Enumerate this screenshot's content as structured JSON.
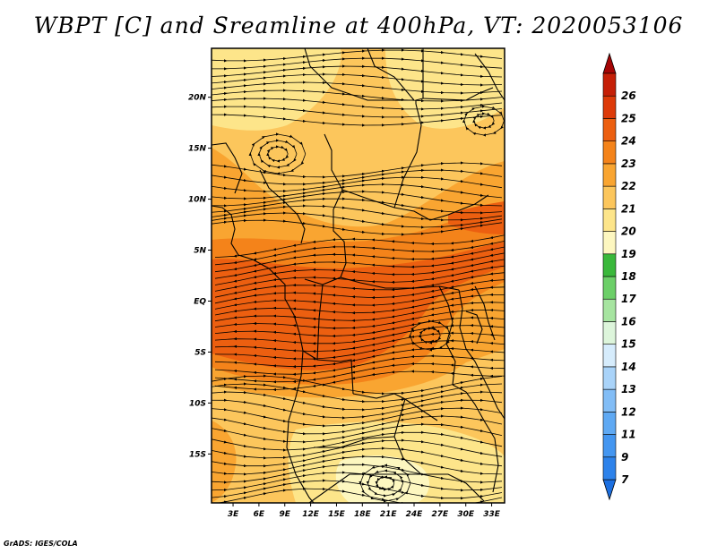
{
  "title": "WBPT [C] and Sreamline at 400hPa, VT: 2020053106",
  "credit": "GrADS: IGES/COLA",
  "map": {
    "lat_labels": [
      {
        "lat": 20,
        "label": "20N"
      },
      {
        "lat": 15,
        "label": "15N"
      },
      {
        "lat": 10,
        "label": "10N"
      },
      {
        "lat": 5,
        "label": "5N"
      },
      {
        "lat": 0,
        "label": "EQ"
      },
      {
        "lat": -5,
        "label": "5S"
      },
      {
        "lat": -10,
        "label": "10S"
      },
      {
        "lat": -15,
        "label": "15S"
      }
    ],
    "lon_labels": [
      {
        "lon": 3,
        "label": "3E"
      },
      {
        "lon": 6,
        "label": "6E"
      },
      {
        "lon": 9,
        "label": "9E"
      },
      {
        "lon": 12,
        "label": "12E"
      },
      {
        "lon": 15,
        "label": "15E"
      },
      {
        "lon": 18,
        "label": "18E"
      },
      {
        "lon": 21,
        "label": "21E"
      },
      {
        "lon": 24,
        "label": "24E"
      },
      {
        "lon": 27,
        "label": "27E"
      },
      {
        "lon": 30,
        "label": "30E"
      },
      {
        "lon": 33,
        "label": "33E"
      }
    ],
    "lat_range": [
      -19.8,
      24.8
    ],
    "lon_range": [
      0.5,
      34.5
    ]
  },
  "colorbar": {
    "levels": [
      "7",
      "9",
      "11",
      "12",
      "13",
      "14",
      "15",
      "16",
      "17",
      "18",
      "19",
      "20",
      "21",
      "22",
      "23",
      "24",
      "25",
      "26"
    ],
    "colors": [
      "#1c6fe0",
      "#2d82ea",
      "#4496f0",
      "#5fa9f3",
      "#82bdf6",
      "#a9d3f9",
      "#d6ecfc",
      "#ddf5db",
      "#a6e4a0",
      "#6ccf68",
      "#3ab83b",
      "#fdf7c0",
      "#fde58a",
      "#fcc65c",
      "#f9a531",
      "#f4831a",
      "#ec5f10",
      "#dd3a09",
      "#c51f07",
      "#a50505"
    ]
  },
  "field_colors": {
    "band_hot": "#ec5f10",
    "band_warm": "#f4831a",
    "mid": "#f9a531",
    "mild": "#fcc65c",
    "cool": "#fde58a",
    "coolest": "#fdf7c0"
  }
}
